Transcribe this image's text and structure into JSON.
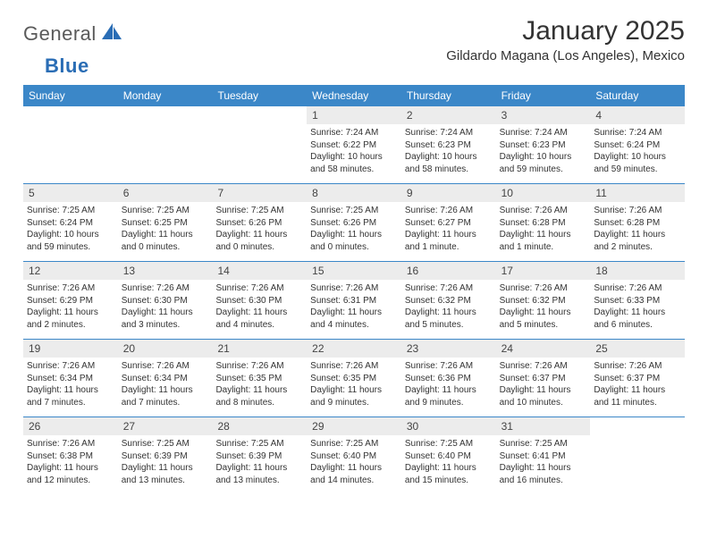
{
  "brand": {
    "part1": "General",
    "part2": "Blue"
  },
  "title": "January 2025",
  "location": "Gildardo Magana (Los Angeles), Mexico",
  "colors": {
    "header_bg": "#3b87c8",
    "header_text": "#ffffff",
    "daynum_bg": "#ececec",
    "rule": "#3b87c8",
    "brand_blue": "#2a6db5",
    "text": "#333333"
  },
  "dayNames": [
    "Sunday",
    "Monday",
    "Tuesday",
    "Wednesday",
    "Thursday",
    "Friday",
    "Saturday"
  ],
  "weeks": [
    [
      null,
      null,
      null,
      {
        "n": "1",
        "sr": "7:24 AM",
        "ss": "6:22 PM",
        "d1": "Daylight: 10 hours",
        "d2": "and 58 minutes."
      },
      {
        "n": "2",
        "sr": "7:24 AM",
        "ss": "6:23 PM",
        "d1": "Daylight: 10 hours",
        "d2": "and 58 minutes."
      },
      {
        "n": "3",
        "sr": "7:24 AM",
        "ss": "6:23 PM",
        "d1": "Daylight: 10 hours",
        "d2": "and 59 minutes."
      },
      {
        "n": "4",
        "sr": "7:24 AM",
        "ss": "6:24 PM",
        "d1": "Daylight: 10 hours",
        "d2": "and 59 minutes."
      }
    ],
    [
      {
        "n": "5",
        "sr": "7:25 AM",
        "ss": "6:24 PM",
        "d1": "Daylight: 10 hours",
        "d2": "and 59 minutes."
      },
      {
        "n": "6",
        "sr": "7:25 AM",
        "ss": "6:25 PM",
        "d1": "Daylight: 11 hours",
        "d2": "and 0 minutes."
      },
      {
        "n": "7",
        "sr": "7:25 AM",
        "ss": "6:26 PM",
        "d1": "Daylight: 11 hours",
        "d2": "and 0 minutes."
      },
      {
        "n": "8",
        "sr": "7:25 AM",
        "ss": "6:26 PM",
        "d1": "Daylight: 11 hours",
        "d2": "and 0 minutes."
      },
      {
        "n": "9",
        "sr": "7:26 AM",
        "ss": "6:27 PM",
        "d1": "Daylight: 11 hours",
        "d2": "and 1 minute."
      },
      {
        "n": "10",
        "sr": "7:26 AM",
        "ss": "6:28 PM",
        "d1": "Daylight: 11 hours",
        "d2": "and 1 minute."
      },
      {
        "n": "11",
        "sr": "7:26 AM",
        "ss": "6:28 PM",
        "d1": "Daylight: 11 hours",
        "d2": "and 2 minutes."
      }
    ],
    [
      {
        "n": "12",
        "sr": "7:26 AM",
        "ss": "6:29 PM",
        "d1": "Daylight: 11 hours",
        "d2": "and 2 minutes."
      },
      {
        "n": "13",
        "sr": "7:26 AM",
        "ss": "6:30 PM",
        "d1": "Daylight: 11 hours",
        "d2": "and 3 minutes."
      },
      {
        "n": "14",
        "sr": "7:26 AM",
        "ss": "6:30 PM",
        "d1": "Daylight: 11 hours",
        "d2": "and 4 minutes."
      },
      {
        "n": "15",
        "sr": "7:26 AM",
        "ss": "6:31 PM",
        "d1": "Daylight: 11 hours",
        "d2": "and 4 minutes."
      },
      {
        "n": "16",
        "sr": "7:26 AM",
        "ss": "6:32 PM",
        "d1": "Daylight: 11 hours",
        "d2": "and 5 minutes."
      },
      {
        "n": "17",
        "sr": "7:26 AM",
        "ss": "6:32 PM",
        "d1": "Daylight: 11 hours",
        "d2": "and 5 minutes."
      },
      {
        "n": "18",
        "sr": "7:26 AM",
        "ss": "6:33 PM",
        "d1": "Daylight: 11 hours",
        "d2": "and 6 minutes."
      }
    ],
    [
      {
        "n": "19",
        "sr": "7:26 AM",
        "ss": "6:34 PM",
        "d1": "Daylight: 11 hours",
        "d2": "and 7 minutes."
      },
      {
        "n": "20",
        "sr": "7:26 AM",
        "ss": "6:34 PM",
        "d1": "Daylight: 11 hours",
        "d2": "and 7 minutes."
      },
      {
        "n": "21",
        "sr": "7:26 AM",
        "ss": "6:35 PM",
        "d1": "Daylight: 11 hours",
        "d2": "and 8 minutes."
      },
      {
        "n": "22",
        "sr": "7:26 AM",
        "ss": "6:35 PM",
        "d1": "Daylight: 11 hours",
        "d2": "and 9 minutes."
      },
      {
        "n": "23",
        "sr": "7:26 AM",
        "ss": "6:36 PM",
        "d1": "Daylight: 11 hours",
        "d2": "and 9 minutes."
      },
      {
        "n": "24",
        "sr": "7:26 AM",
        "ss": "6:37 PM",
        "d1": "Daylight: 11 hours",
        "d2": "and 10 minutes."
      },
      {
        "n": "25",
        "sr": "7:26 AM",
        "ss": "6:37 PM",
        "d1": "Daylight: 11 hours",
        "d2": "and 11 minutes."
      }
    ],
    [
      {
        "n": "26",
        "sr": "7:26 AM",
        "ss": "6:38 PM",
        "d1": "Daylight: 11 hours",
        "d2": "and 12 minutes."
      },
      {
        "n": "27",
        "sr": "7:25 AM",
        "ss": "6:39 PM",
        "d1": "Daylight: 11 hours",
        "d2": "and 13 minutes."
      },
      {
        "n": "28",
        "sr": "7:25 AM",
        "ss": "6:39 PM",
        "d1": "Daylight: 11 hours",
        "d2": "and 13 minutes."
      },
      {
        "n": "29",
        "sr": "7:25 AM",
        "ss": "6:40 PM",
        "d1": "Daylight: 11 hours",
        "d2": "and 14 minutes."
      },
      {
        "n": "30",
        "sr": "7:25 AM",
        "ss": "6:40 PM",
        "d1": "Daylight: 11 hours",
        "d2": "and 15 minutes."
      },
      {
        "n": "31",
        "sr": "7:25 AM",
        "ss": "6:41 PM",
        "d1": "Daylight: 11 hours",
        "d2": "and 16 minutes."
      },
      null
    ]
  ],
  "labels": {
    "sunrise": "Sunrise: ",
    "sunset": "Sunset: "
  }
}
